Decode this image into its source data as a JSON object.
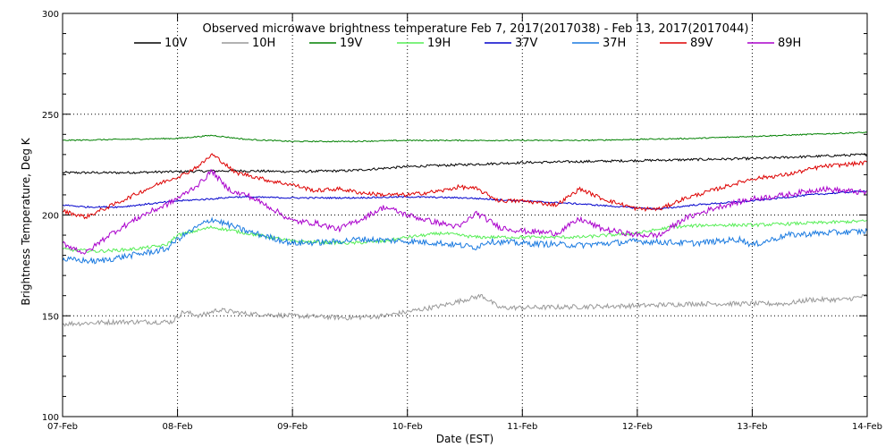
{
  "chart_data": {
    "type": "line",
    "title": "Observed microwave brightness temperature Feb  7, 2017(2017038) - Feb 13, 2017(2017044)",
    "xlabel": "Date (EST)",
    "ylabel": "Brightness Temperature, Deg K",
    "ylim": [
      100,
      300
    ],
    "xlim": [
      0,
      7
    ],
    "x_ticks": [
      0,
      1,
      2,
      3,
      4,
      5,
      6,
      7
    ],
    "x_tick_labels": [
      "07-Feb",
      "08-Feb",
      "09-Feb",
      "10-Feb",
      "11-Feb",
      "12-Feb",
      "13-Feb",
      "14-Feb"
    ],
    "y_ticks": [
      100,
      150,
      200,
      250,
      300
    ],
    "y_tick_labels": [
      "100",
      "150",
      "200",
      "250",
      "300"
    ],
    "grid": {
      "vertical": "dotted, at each day",
      "horizontal": "dotted, at 150 / 200 / 250"
    },
    "legend_position": "top",
    "series": [
      {
        "name": "10V",
        "color": "#000000",
        "noise": 0.6,
        "x": [
          0,
          0.5,
          1,
          1.5,
          2,
          2.5,
          3,
          3.5,
          4,
          4.5,
          5,
          5.5,
          6,
          6.5,
          7
        ],
        "y": [
          221,
          221,
          221.5,
          222,
          221.5,
          222,
          224,
          225,
          226,
          226.5,
          227,
          227.5,
          228,
          229,
          230
        ]
      },
      {
        "name": "10H",
        "color": "#999999",
        "noise": 1.2,
        "x": [
          0,
          0.5,
          0.95,
          1.05,
          1.2,
          1.35,
          1.6,
          2,
          2.5,
          2.8,
          3,
          3.3,
          3.5,
          3.65,
          3.8,
          4,
          4.5,
          5,
          5.5,
          6,
          6.3,
          6.5,
          6.8,
          7
        ],
        "y": [
          146,
          147,
          147,
          152,
          150,
          153,
          151,
          150,
          149,
          150,
          152,
          155,
          158,
          160,
          154,
          154,
          154.5,
          155,
          156,
          156,
          156,
          158,
          158,
          160
        ]
      },
      {
        "name": "19V",
        "color": "#008000",
        "noise": 0.3,
        "x": [
          0,
          0.5,
          1,
          1.3,
          1.6,
          2,
          2.5,
          3,
          3.5,
          4,
          4.5,
          5,
          5.5,
          6,
          6.5,
          7
        ],
        "y": [
          237,
          237.5,
          238,
          239.5,
          237.5,
          236.5,
          236.5,
          237,
          237,
          237,
          237,
          237.5,
          238,
          239,
          240,
          241
        ]
      },
      {
        "name": "19H",
        "color": "#55ee55",
        "noise": 0.8,
        "x": [
          0,
          0.3,
          0.6,
          0.9,
          1.0,
          1.3,
          1.5,
          2,
          2.5,
          2.8,
          3,
          3.3,
          3.6,
          3.7,
          4,
          4.5,
          5,
          5.3,
          5.6,
          6,
          6.5,
          7
        ],
        "y": [
          183,
          182,
          183,
          185,
          190,
          194,
          192,
          187,
          186,
          187,
          189,
          191,
          189,
          189,
          189,
          189,
          191,
          194,
          195,
          195,
          196,
          197
        ]
      },
      {
        "name": "37V",
        "color": "#0000cc",
        "noise": 0.4,
        "x": [
          0,
          0.2,
          0.5,
          1,
          1.3,
          1.5,
          2,
          2.5,
          3,
          3.5,
          4,
          4.5,
          5,
          5.2,
          5.5,
          6,
          6.5,
          7
        ],
        "y": [
          205,
          204,
          204,
          207,
          208,
          209,
          208.5,
          208.5,
          209,
          208.5,
          207,
          205.5,
          203.5,
          203,
          205,
          207,
          210,
          212
        ]
      },
      {
        "name": "37H",
        "color": "#1a7ae0",
        "noise": 1.5,
        "x": [
          0,
          0.3,
          0.6,
          0.9,
          1.0,
          1.2,
          1.3,
          1.6,
          1.8,
          2,
          2.3,
          2.6,
          3,
          3.3,
          3.6,
          3.7,
          4,
          4.5,
          5,
          5.5,
          5.9,
          6,
          6.3,
          6.6,
          7
        ],
        "y": [
          178,
          177,
          180,
          183,
          188,
          195,
          198,
          192,
          189,
          186,
          186.5,
          188,
          187,
          186,
          184,
          187,
          186,
          185,
          187,
          186,
          188,
          185,
          190,
          191,
          192
        ]
      },
      {
        "name": "89V",
        "color": "#dd0000",
        "noise": 1.0,
        "x": [
          0,
          0.2,
          0.4,
          0.7,
          0.9,
          1.05,
          1.2,
          1.3,
          1.4,
          1.5,
          1.6,
          1.8,
          2,
          2.2,
          2.4,
          2.6,
          2.8,
          3,
          3.3,
          3.45,
          3.6,
          3.8,
          4,
          4.3,
          4.5,
          4.7,
          5,
          5.2,
          5.4,
          5.7,
          6,
          6.3,
          6.6,
          7
        ],
        "y": [
          202,
          199,
          204,
          212,
          217,
          220,
          225,
          230,
          226,
          221,
          220,
          217,
          215,
          212,
          213,
          211,
          210,
          210,
          212,
          214,
          213,
          207,
          207,
          205,
          213,
          208,
          203,
          203,
          208,
          213,
          218,
          220,
          224,
          226
        ]
      },
      {
        "name": "89H",
        "color": "#aa00cc",
        "noise": 1.4,
        "x": [
          0,
          0.2,
          0.4,
          0.7,
          0.9,
          1.05,
          1.2,
          1.3,
          1.4,
          1.5,
          1.6,
          1.8,
          2,
          2.2,
          2.4,
          2.6,
          2.8,
          3,
          3.2,
          3.45,
          3.6,
          3.8,
          4,
          4.3,
          4.5,
          4.7,
          5,
          5.2,
          5.4,
          5.7,
          6,
          6.3,
          6.6,
          7
        ],
        "y": [
          186,
          181,
          190,
          200,
          205,
          210,
          216,
          222,
          215,
          211,
          210,
          204,
          197,
          196,
          193,
          198,
          204,
          200,
          197,
          194,
          201,
          194,
          192,
          191,
          198,
          193,
          190,
          190,
          198,
          204,
          208,
          210,
          213,
          211
        ]
      }
    ]
  }
}
